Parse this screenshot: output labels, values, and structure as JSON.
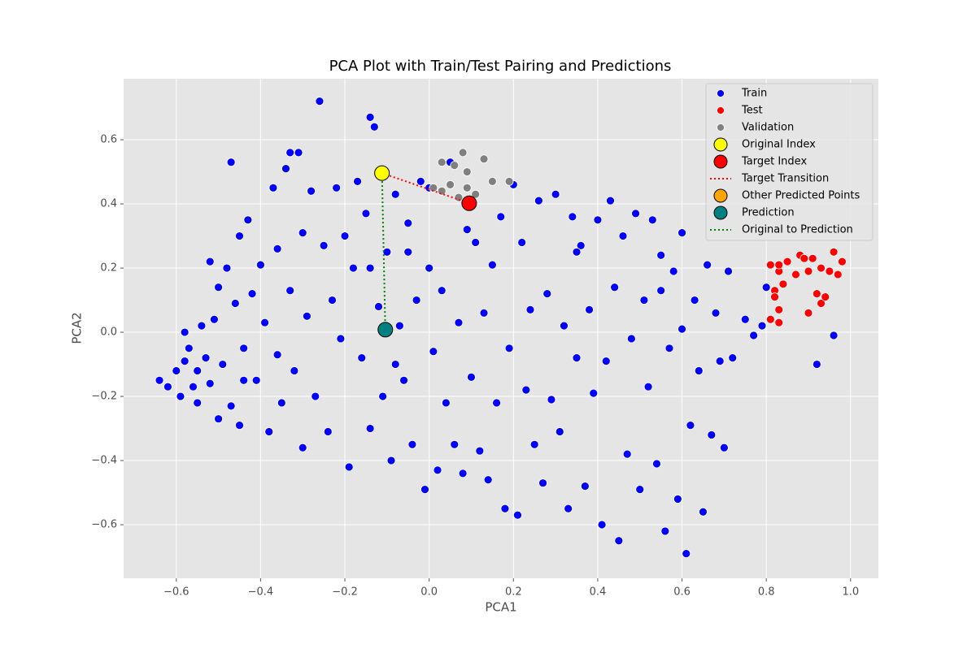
{
  "chart_data": {
    "type": "scatter",
    "title": "PCA Plot with Train/Test Pairing and Predictions",
    "xlabel": "PCA1",
    "ylabel": "PCA2",
    "xlim": [
      -0.725,
      1.066
    ],
    "ylim": [
      -0.767,
      0.79
    ],
    "xticks": [
      {
        "value": -0.6,
        "label": "−0.6"
      },
      {
        "value": -0.4,
        "label": "−0.4"
      },
      {
        "value": -0.2,
        "label": "−0.2"
      },
      {
        "value": 0,
        "label": "0.0"
      },
      0.2,
      0.4,
      0.6,
      0.8,
      {
        "value": 1,
        "label": "1.0"
      }
    ],
    "yticks": [
      {
        "value": -0.6,
        "label": "−0.6"
      },
      {
        "value": -0.4,
        "label": "−0.4"
      },
      {
        "value": -0.2,
        "label": "−0.2"
      },
      {
        "value": 0,
        "label": "0.0"
      },
      0.2,
      0.4,
      0.6
    ],
    "grid": true,
    "legend": "upper right",
    "series": [
      {
        "name": "Train",
        "color": "#0000ff",
        "marker": "point",
        "x": [
          -0.64,
          -0.62,
          -0.6,
          -0.59,
          -0.58,
          -0.57,
          -0.56,
          -0.55,
          -0.55,
          -0.54,
          -0.53,
          -0.52,
          -0.51,
          -0.5,
          -0.5,
          -0.49,
          -0.48,
          -0.47,
          -0.46,
          -0.45,
          -0.45,
          -0.44,
          -0.43,
          -0.42,
          -0.41,
          -0.4,
          -0.39,
          -0.38,
          -0.37,
          -0.36,
          -0.35,
          -0.34,
          -0.33,
          -0.32,
          -0.31,
          -0.3,
          -0.3,
          -0.29,
          -0.28,
          -0.27,
          -0.26,
          -0.25,
          -0.24,
          -0.23,
          -0.22,
          -0.21,
          -0.2,
          -0.19,
          -0.18,
          -0.17,
          -0.16,
          -0.15,
          -0.14,
          -0.14,
          -0.13,
          -0.12,
          -0.11,
          -0.1,
          -0.09,
          -0.08,
          -0.07,
          -0.06,
          -0.05,
          -0.04,
          -0.03,
          -0.02,
          -0.01,
          0.0,
          0.01,
          0.02,
          0.03,
          0.04,
          0.05,
          0.06,
          0.07,
          0.08,
          0.09,
          0.1,
          0.11,
          0.12,
          0.13,
          0.14,
          0.15,
          0.16,
          0.17,
          0.18,
          0.19,
          0.2,
          0.21,
          0.22,
          0.23,
          0.24,
          0.25,
          0.26,
          0.27,
          0.28,
          0.29,
          0.3,
          0.31,
          0.32,
          0.33,
          0.34,
          0.35,
          0.36,
          0.37,
          0.38,
          0.39,
          0.4,
          0.41,
          0.42,
          0.43,
          0.44,
          0.45,
          0.46,
          0.47,
          0.48,
          0.49,
          0.5,
          0.51,
          0.52,
          0.53,
          0.54,
          0.55,
          0.56,
          0.57,
          0.58,
          0.59,
          0.6,
          0.61,
          0.62,
          0.63,
          0.64,
          0.65,
          0.66,
          0.67,
          0.68,
          0.69,
          0.7,
          0.71,
          0.72,
          0.75,
          0.77,
          0.79,
          0.8,
          0.92,
          0.96,
          -0.47,
          -0.33,
          -0.05,
          -0.14,
          0.0,
          -0.44,
          -0.58,
          -0.52,
          -0.36,
          -0.08,
          0.35,
          0.55,
          0.6
        ],
        "y": [
          -0.15,
          -0.17,
          -0.12,
          -0.2,
          -0.09,
          -0.05,
          -0.17,
          -0.12,
          -0.22,
          0.02,
          -0.08,
          -0.16,
          0.04,
          -0.27,
          0.14,
          -0.1,
          0.2,
          -0.23,
          0.09,
          0.3,
          -0.29,
          -0.05,
          0.35,
          0.12,
          -0.15,
          0.21,
          0.03,
          -0.31,
          0.45,
          0.26,
          -0.22,
          0.51,
          0.13,
          -0.12,
          0.56,
          0.31,
          -0.36,
          0.05,
          0.44,
          -0.2,
          0.72,
          0.27,
          -0.31,
          0.1,
          0.45,
          -0.02,
          0.3,
          -0.42,
          0.2,
          0.47,
          -0.08,
          0.37,
          -0.3,
          0.67,
          0.64,
          0.08,
          -0.2,
          0.25,
          -0.4,
          0.43,
          0.02,
          -0.15,
          0.34,
          -0.35,
          0.1,
          0.47,
          -0.49,
          0.2,
          -0.06,
          -0.43,
          0.13,
          -0.22,
          0.53,
          -0.35,
          0.03,
          -0.44,
          0.32,
          -0.14,
          0.28,
          -0.37,
          0.06,
          -0.46,
          0.21,
          -0.22,
          0.36,
          -0.55,
          -0.05,
          0.46,
          -0.57,
          0.28,
          -0.18,
          0.07,
          -0.35,
          0.41,
          -0.47,
          0.12,
          -0.21,
          0.43,
          -0.31,
          0.02,
          -0.55,
          0.36,
          -0.08,
          0.27,
          -0.48,
          0.07,
          -0.19,
          0.35,
          -0.6,
          -0.09,
          0.41,
          0.14,
          -0.65,
          0.3,
          -0.38,
          -0.02,
          0.37,
          -0.49,
          0.1,
          -0.17,
          0.35,
          -0.41,
          0.24,
          -0.62,
          -0.05,
          0.19,
          -0.52,
          0.31,
          -0.69,
          -0.29,
          0.1,
          -0.12,
          -0.56,
          0.21,
          -0.32,
          0.06,
          -0.09,
          -0.36,
          0.19,
          -0.08,
          0.04,
          -0.01,
          0.02,
          0.14,
          -0.1,
          -0.01,
          0.53,
          0.56,
          0.25,
          0.2,
          0.45,
          -0.15,
          0.0,
          0.22,
          -0.07,
          -0.1,
          0.25,
          0.13,
          0.01
        ]
      },
      {
        "name": "Test",
        "color": "#ff0000",
        "marker": "point",
        "x": [
          0.81,
          0.82,
          0.83,
          0.83,
          0.83,
          0.84,
          0.85,
          0.87,
          0.88,
          0.89,
          0.9,
          0.9,
          0.91,
          0.92,
          0.93,
          0.93,
          0.94,
          0.95,
          0.96,
          0.97,
          0.98,
          0.81,
          0.82,
          0.83
        ],
        "y": [
          0.21,
          0.13,
          0.19,
          0.07,
          0.03,
          0.15,
          0.22,
          0.18,
          0.24,
          0.23,
          0.19,
          0.06,
          0.23,
          0.12,
          0.09,
          0.2,
          0.11,
          0.19,
          0.25,
          0.18,
          0.22,
          0.04,
          0.11,
          0.21
        ]
      },
      {
        "name": "Validation",
        "color": "#808080",
        "marker": "point",
        "x": [
          0.03,
          0.06,
          0.08,
          0.09,
          0.09,
          0.05,
          0.07,
          0.11,
          0.13,
          0.15,
          0.19,
          0.03,
          0.01,
          0.15
        ],
        "y": [
          0.53,
          0.52,
          0.56,
          0.5,
          0.45,
          0.46,
          0.42,
          0.43,
          0.54,
          0.47,
          0.47,
          0.44,
          0.45,
          0.47
        ]
      },
      {
        "name": "Original Index",
        "color": "#ffff00",
        "marker": "large",
        "x": [
          -0.112
        ],
        "y": [
          0.496
        ]
      },
      {
        "name": "Target Index",
        "color": "#ff0000",
        "marker": "large",
        "x": [
          0.095
        ],
        "y": [
          0.402
        ]
      },
      {
        "name": "Target Transition",
        "color": "#ff0000",
        "marker": "dotted-line",
        "x": [
          -0.112,
          0.095
        ],
        "y": [
          0.496,
          0.402
        ]
      },
      {
        "name": "Other Predicted Points",
        "color": "#ffa500",
        "marker": "large",
        "x": [],
        "y": []
      },
      {
        "name": "Prediction",
        "color": "#008080",
        "marker": "large",
        "x": [
          -0.104
        ],
        "y": [
          0.008
        ]
      },
      {
        "name": "Original to Prediction",
        "color": "#008000",
        "marker": "dotted-line",
        "x": [
          -0.112,
          -0.104
        ],
        "y": [
          0.496,
          0.008
        ]
      }
    ]
  }
}
